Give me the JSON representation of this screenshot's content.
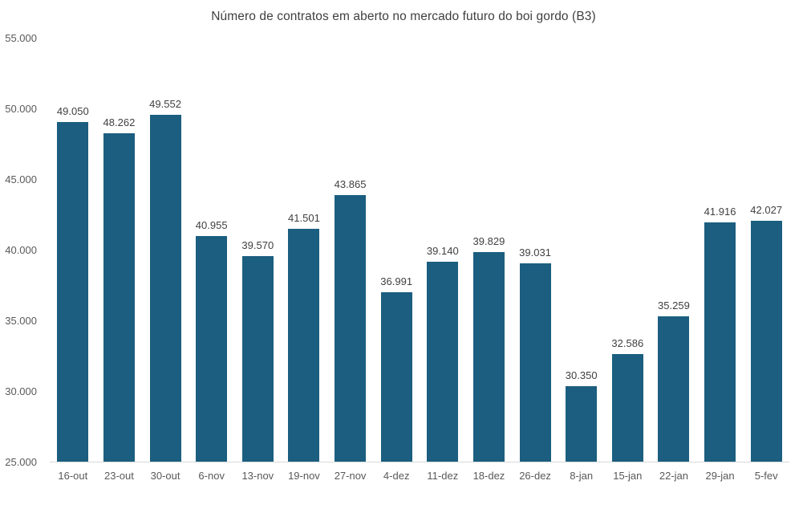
{
  "chart_data": {
    "type": "bar",
    "title": "Número de contratos em aberto no mercado futuro do boi gordo (B3)",
    "categories": [
      "16-out",
      "23-out",
      "30-out",
      "6-nov",
      "13-nov",
      "19-nov",
      "27-nov",
      "4-dez",
      "11-dez",
      "18-dez",
      "26-dez",
      "8-jan",
      "15-jan",
      "22-jan",
      "29-jan",
      "5-fev"
    ],
    "values": [
      49050,
      48262,
      49552,
      40955,
      39570,
      41501,
      43865,
      36991,
      39140,
      39829,
      39031,
      30350,
      32586,
      35259,
      41916,
      42027
    ],
    "value_labels": [
      "49.050",
      "48.262",
      "49.552",
      "40.955",
      "39.570",
      "41.501",
      "43.865",
      "36.991",
      "39.140",
      "39.829",
      "39.031",
      "30.350",
      "32.586",
      "35.259",
      "41.916",
      "42.027"
    ],
    "y_ticks": [
      {
        "value": 55000,
        "label": "55.000"
      },
      {
        "value": 50000,
        "label": "50.000"
      },
      {
        "value": 45000,
        "label": "45.000"
      },
      {
        "value": 40000,
        "label": "40.000"
      },
      {
        "value": 35000,
        "label": "35.000"
      },
      {
        "value": 30000,
        "label": "30.000"
      },
      {
        "value": 25000,
        "label": "25.000"
      }
    ],
    "ylim": [
      25000,
      55000
    ],
    "xlabel": "",
    "ylabel": "",
    "grid": false,
    "legend": "none",
    "colors": {
      "bar": "#1B5E7F",
      "axis_line": "#d9d9d9",
      "title_text": "#3f3f3f",
      "axis_text": "#595959",
      "value_text": "#404040",
      "background": "#ffffff"
    }
  }
}
